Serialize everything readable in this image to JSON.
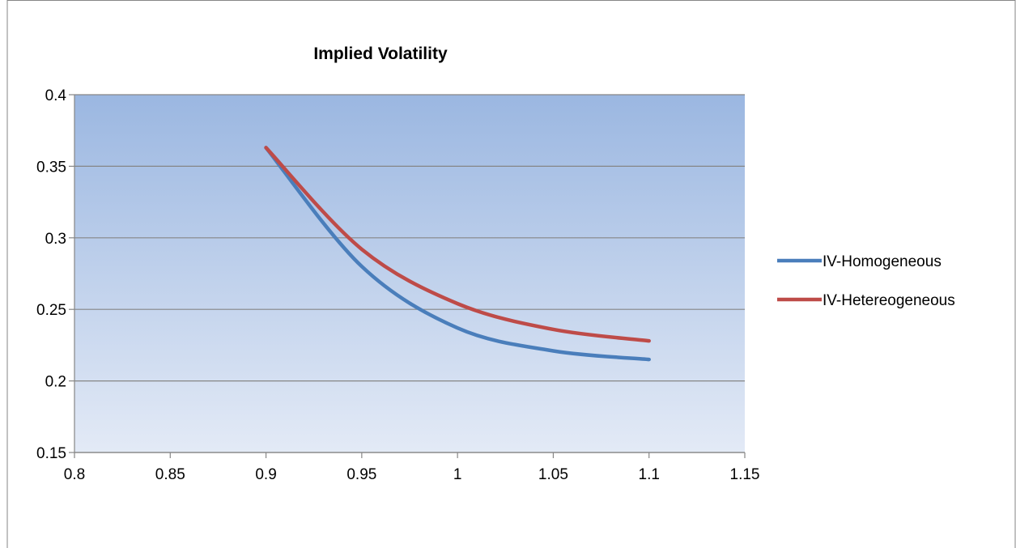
{
  "chart_data": {
    "type": "line",
    "title": "Implied Volatility",
    "xlabel": "",
    "ylabel": "",
    "xlim": [
      0.8,
      1.15
    ],
    "ylim": [
      0.15,
      0.4
    ],
    "x_ticks": [
      "0.8",
      "0.85",
      "0.9",
      "0.95",
      "1",
      "1.05",
      "1.1",
      "1.15"
    ],
    "y_ticks": [
      "0.4",
      "0.35",
      "0.3",
      "0.25",
      "0.2",
      "0.15"
    ],
    "grid": "horizontal",
    "legend_position": "right",
    "series": [
      {
        "name": "IV-Homogeneous",
        "color": "#4a7ebb",
        "x": [
          0.9,
          0.95,
          1.0,
          1.05,
          1.1
        ],
        "y": [
          0.363,
          0.28,
          0.237,
          0.221,
          0.215
        ]
      },
      {
        "name": "IV-Hetereogeneous",
        "color": "#be4b48",
        "x": [
          0.9,
          0.95,
          1.0,
          1.05,
          1.1
        ],
        "y": [
          0.363,
          0.292,
          0.254,
          0.236,
          0.228
        ]
      }
    ]
  }
}
